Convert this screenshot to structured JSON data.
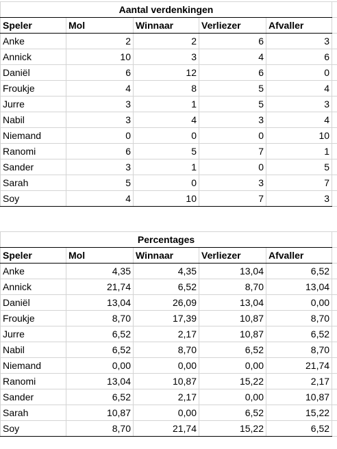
{
  "table1": {
    "title": "Aantal verdenkingen",
    "headers": [
      "Speler",
      "Mol",
      "Winnaar",
      "Verliezer",
      "Afvaller"
    ],
    "rows": [
      [
        "Anke",
        "2",
        "2",
        "6",
        "3"
      ],
      [
        "Annick",
        "10",
        "3",
        "4",
        "6"
      ],
      [
        "Daniël",
        "6",
        "12",
        "6",
        "0"
      ],
      [
        "Froukje",
        "4",
        "8",
        "5",
        "4"
      ],
      [
        "Jurre",
        "3",
        "1",
        "5",
        "3"
      ],
      [
        "Nabil",
        "3",
        "4",
        "3",
        "4"
      ],
      [
        "Niemand",
        "0",
        "0",
        "0",
        "10"
      ],
      [
        "Ranomi",
        "6",
        "5",
        "7",
        "1"
      ],
      [
        "Sander",
        "3",
        "1",
        "0",
        "5"
      ],
      [
        "Sarah",
        "5",
        "0",
        "3",
        "7"
      ],
      [
        "Soy",
        "4",
        "10",
        "7",
        "3"
      ]
    ]
  },
  "table2": {
    "title": "Percentages",
    "headers": [
      "Speler",
      "Mol",
      "Winnaar",
      "Verliezer",
      "Afvaller"
    ],
    "rows": [
      [
        "Anke",
        "4,35",
        "4,35",
        "13,04",
        "6,52"
      ],
      [
        "Annick",
        "21,74",
        "6,52",
        "8,70",
        "13,04"
      ],
      [
        "Daniël",
        "13,04",
        "26,09",
        "13,04",
        "0,00"
      ],
      [
        "Froukje",
        "8,70",
        "17,39",
        "10,87",
        "8,70"
      ],
      [
        "Jurre",
        "6,52",
        "2,17",
        "10,87",
        "6,52"
      ],
      [
        "Nabil",
        "6,52",
        "8,70",
        "6,52",
        "8,70"
      ],
      [
        "Niemand",
        "0,00",
        "0,00",
        "0,00",
        "21,74"
      ],
      [
        "Ranomi",
        "13,04",
        "10,87",
        "15,22",
        "2,17"
      ],
      [
        "Sander",
        "6,52",
        "2,17",
        "0,00",
        "10,87"
      ],
      [
        "Sarah",
        "10,87",
        "0,00",
        "6,52",
        "15,22"
      ],
      [
        "Soy",
        "8,70",
        "21,74",
        "15,22",
        "6,52"
      ]
    ]
  }
}
